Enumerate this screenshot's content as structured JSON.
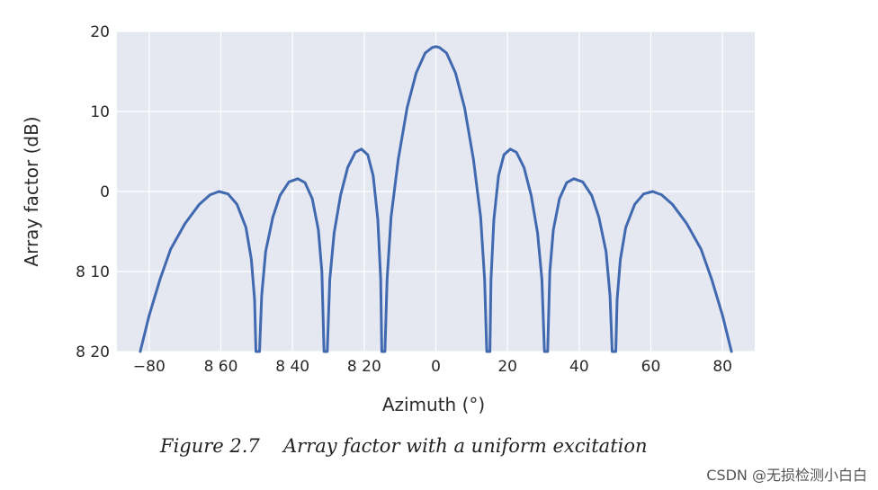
{
  "chart_data": {
    "type": "line",
    "title": "",
    "xlabel": "Azimuth (°)",
    "ylabel": "Array factor (dB)",
    "xlim": [
      -89,
      89
    ],
    "ylim": [
      -20,
      20
    ],
    "x_ticks": [
      -80,
      -60,
      -40,
      -20,
      0,
      20,
      40,
      60,
      80
    ],
    "x_tick_labels": [
      "−80",
      "8 60",
      "8 40",
      "8 20",
      "0",
      "20",
      "40",
      "60",
      "80"
    ],
    "y_ticks": [
      20,
      10,
      0,
      -10,
      -20
    ],
    "y_tick_labels": [
      "20",
      "10",
      "0",
      "8 10",
      "8 20"
    ],
    "grid": true,
    "background": "#e5e8f1",
    "line_color": "#4169b0",
    "series": [
      {
        "name": "Uniform excitation",
        "points": [
          [
            -82.5,
            -20
          ],
          [
            -80,
            -15.5
          ],
          [
            -77,
            -11
          ],
          [
            -74,
            -7.2
          ],
          [
            -70,
            -4
          ],
          [
            -66,
            -1.6
          ],
          [
            -63,
            -0.4
          ],
          [
            -60.5,
            0
          ],
          [
            -58,
            -0.3
          ],
          [
            -55.5,
            -1.6
          ],
          [
            -53,
            -4.5
          ],
          [
            -51.5,
            -8.5
          ],
          [
            -50.6,
            -13.5
          ],
          [
            -50.2,
            -20
          ],
          [
            -49.2,
            -20
          ],
          [
            -48.6,
            -13
          ],
          [
            -47.5,
            -7.5
          ],
          [
            -45.5,
            -3.2
          ],
          [
            -43.5,
            -0.5
          ],
          [
            -41,
            1.2
          ],
          [
            -38.5,
            1.6
          ],
          [
            -36.5,
            1.1
          ],
          [
            -34.5,
            -0.9
          ],
          [
            -32.8,
            -4.8
          ],
          [
            -31.8,
            -10
          ],
          [
            -31.2,
            -20
          ],
          [
            -30.3,
            -20
          ],
          [
            -29.6,
            -11
          ],
          [
            -28.4,
            -5.2
          ],
          [
            -26.6,
            -0.5
          ],
          [
            -24.6,
            3
          ],
          [
            -22.5,
            4.9
          ],
          [
            -20.8,
            5.3
          ],
          [
            -19,
            4.6
          ],
          [
            -17.5,
            2
          ],
          [
            -16.2,
            -3.5
          ],
          [
            -15.4,
            -11
          ],
          [
            -15.1,
            -20
          ],
          [
            -14.2,
            -20
          ],
          [
            -13.6,
            -11
          ],
          [
            -12.5,
            -3.2
          ],
          [
            -10.5,
            4
          ],
          [
            -8,
            10.5
          ],
          [
            -5.5,
            14.8
          ],
          [
            -3,
            17.3
          ],
          [
            -1,
            18
          ],
          [
            0,
            18.1
          ],
          [
            1,
            18
          ],
          [
            3,
            17.3
          ],
          [
            5.5,
            14.8
          ],
          [
            8,
            10.5
          ],
          [
            10.5,
            4
          ],
          [
            12.5,
            -3.2
          ],
          [
            13.6,
            -11
          ],
          [
            14.2,
            -20
          ],
          [
            15.1,
            -20
          ],
          [
            15.4,
            -11
          ],
          [
            16.2,
            -3.5
          ],
          [
            17.5,
            2
          ],
          [
            19,
            4.6
          ],
          [
            20.8,
            5.3
          ],
          [
            22.5,
            4.9
          ],
          [
            24.6,
            3
          ],
          [
            26.6,
            -0.5
          ],
          [
            28.4,
            -5.2
          ],
          [
            29.6,
            -11
          ],
          [
            30.3,
            -20
          ],
          [
            31.2,
            -20
          ],
          [
            31.8,
            -10
          ],
          [
            32.8,
            -4.8
          ],
          [
            34.5,
            -0.9
          ],
          [
            36.5,
            1.1
          ],
          [
            38.5,
            1.6
          ],
          [
            41,
            1.2
          ],
          [
            43.5,
            -0.5
          ],
          [
            45.5,
            -3.2
          ],
          [
            47.5,
            -7.5
          ],
          [
            48.6,
            -13
          ],
          [
            49.2,
            -20
          ],
          [
            50.2,
            -20
          ],
          [
            50.6,
            -13.5
          ],
          [
            51.5,
            -8.5
          ],
          [
            53,
            -4.5
          ],
          [
            55.5,
            -1.6
          ],
          [
            58,
            -0.3
          ],
          [
            60.5,
            0
          ],
          [
            63,
            -0.4
          ],
          [
            66,
            -1.6
          ],
          [
            70,
            -4
          ],
          [
            74,
            -7.2
          ],
          [
            77,
            -11
          ],
          [
            80,
            -15.5
          ],
          [
            82.5,
            -20
          ]
        ]
      }
    ]
  },
  "caption": {
    "number": "Figure 2.7",
    "text": "Array factor with a uniform excitation"
  },
  "watermark": "CSDN @无损检测小白白"
}
